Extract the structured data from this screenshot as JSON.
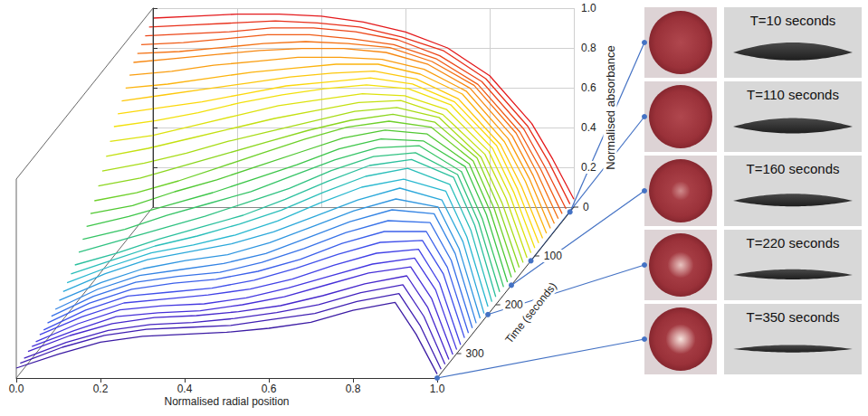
{
  "chart_data": {
    "type": "line",
    "xlabel": "Normalised radial position",
    "ylabel": "Normalised absorbance",
    "zlabel": "Time (seconds)",
    "x": [
      0,
      0.1,
      0.2,
      0.3,
      0.4,
      0.5,
      0.6,
      0.7,
      0.8,
      0.9,
      0.95,
      1
    ],
    "xlim": [
      0,
      1
    ],
    "xticks": [
      {
        "value": 0,
        "label": "0.0"
      },
      0.2,
      0.4,
      0.6,
      0.8,
      {
        "value": 1,
        "label": "1.0"
      }
    ],
    "ylim": [
      0,
      1
    ],
    "yticks": [
      0.2,
      0.4,
      0.6,
      0.8,
      {
        "value": 1,
        "label": "1.0"
      }
    ],
    "zlim": [
      0,
      350
    ],
    "zticks": [
      0,
      100,
      200,
      300
    ],
    "grid": true,
    "series": [
      {
        "time": 0,
        "color": "#e41a1c",
        "values": [
          0.95,
          0.96,
          0.97,
          0.97,
          0.96,
          0.93,
          0.88,
          0.8,
          0.66,
          0.42,
          0.24,
          0.04
        ]
      },
      {
        "time": 10,
        "color": "#e8301a",
        "values": [
          0.93,
          0.94,
          0.95,
          0.96,
          0.95,
          0.93,
          0.88,
          0.81,
          0.67,
          0.43,
          0.25,
          0.04
        ]
      },
      {
        "time": 20,
        "color": "#ec4618",
        "values": [
          0.91,
          0.92,
          0.93,
          0.95,
          0.95,
          0.93,
          0.89,
          0.81,
          0.68,
          0.44,
          0.25,
          0.04
        ]
      },
      {
        "time": 30,
        "color": "#f05c16",
        "values": [
          0.89,
          0.9,
          0.92,
          0.94,
          0.94,
          0.92,
          0.89,
          0.82,
          0.69,
          0.45,
          0.26,
          0.04
        ]
      },
      {
        "time": 40,
        "color": "#f47214",
        "values": [
          0.87,
          0.88,
          0.9,
          0.92,
          0.93,
          0.92,
          0.9,
          0.83,
          0.71,
          0.47,
          0.27,
          0.04
        ]
      },
      {
        "time": 50,
        "color": "#f78812",
        "values": [
          0.85,
          0.87,
          0.89,
          0.91,
          0.92,
          0.92,
          0.9,
          0.84,
          0.72,
          0.48,
          0.28,
          0.04
        ]
      },
      {
        "time": 60,
        "color": "#fa9e10",
        "values": [
          0.81,
          0.83,
          0.86,
          0.88,
          0.9,
          0.9,
          0.89,
          0.84,
          0.73,
          0.49,
          0.29,
          0.04
        ]
      },
      {
        "time": 70,
        "color": "#fcb40e",
        "values": [
          0.77,
          0.79,
          0.82,
          0.85,
          0.87,
          0.89,
          0.89,
          0.84,
          0.74,
          0.5,
          0.3,
          0.04
        ]
      },
      {
        "time": 80,
        "color": "#fdc80c",
        "values": [
          0.73,
          0.76,
          0.79,
          0.82,
          0.85,
          0.87,
          0.88,
          0.84,
          0.74,
          0.51,
          0.3,
          0.04
        ]
      },
      {
        "time": 90,
        "color": "#fcd80b",
        "values": [
          0.69,
          0.72,
          0.75,
          0.79,
          0.83,
          0.85,
          0.87,
          0.84,
          0.75,
          0.53,
          0.31,
          0.04
        ]
      },
      {
        "time": 100,
        "color": "#f2e00c",
        "values": [
          0.65,
          0.68,
          0.72,
          0.77,
          0.81,
          0.84,
          0.86,
          0.84,
          0.76,
          0.54,
          0.32,
          0.04
        ]
      },
      {
        "time": 110,
        "color": "#dde20e",
        "values": [
          0.6,
          0.63,
          0.68,
          0.73,
          0.78,
          0.81,
          0.84,
          0.83,
          0.76,
          0.55,
          0.33,
          0.04
        ]
      },
      {
        "time": 120,
        "color": "#c4e012",
        "values": [
          0.55,
          0.59,
          0.64,
          0.69,
          0.74,
          0.78,
          0.82,
          0.83,
          0.76,
          0.56,
          0.34,
          0.04
        ]
      },
      {
        "time": 130,
        "color": "#a8dc18",
        "values": [
          0.5,
          0.54,
          0.59,
          0.65,
          0.7,
          0.75,
          0.8,
          0.82,
          0.77,
          0.57,
          0.34,
          0.04
        ]
      },
      {
        "time": 140,
        "color": "#8cd620",
        "values": [
          0.45,
          0.49,
          0.55,
          0.61,
          0.67,
          0.73,
          0.78,
          0.81,
          0.77,
          0.59,
          0.35,
          0.04
        ]
      },
      {
        "time": 150,
        "color": "#6ed02a",
        "values": [
          0.4,
          0.44,
          0.5,
          0.57,
          0.64,
          0.71,
          0.77,
          0.8,
          0.77,
          0.6,
          0.36,
          0.04
        ]
      },
      {
        "time": 160,
        "color": "#50c832",
        "values": [
          0.36,
          0.4,
          0.47,
          0.53,
          0.6,
          0.67,
          0.74,
          0.78,
          0.76,
          0.61,
          0.37,
          0.04
        ]
      },
      {
        "time": 170,
        "color": "#3ec64a",
        "values": [
          0.32,
          0.37,
          0.43,
          0.49,
          0.56,
          0.63,
          0.71,
          0.76,
          0.75,
          0.62,
          0.38,
          0.04
        ]
      },
      {
        "time": 180,
        "color": "#36c466",
        "values": [
          0.28,
          0.33,
          0.4,
          0.46,
          0.52,
          0.6,
          0.68,
          0.74,
          0.75,
          0.62,
          0.38,
          0.04
        ]
      },
      {
        "time": 190,
        "color": "#30c282",
        "values": [
          0.24,
          0.3,
          0.36,
          0.42,
          0.49,
          0.56,
          0.65,
          0.72,
          0.74,
          0.63,
          0.39,
          0.04
        ]
      },
      {
        "time": 200,
        "color": "#2cc09e",
        "values": [
          0.2,
          0.26,
          0.33,
          0.39,
          0.45,
          0.53,
          0.62,
          0.7,
          0.73,
          0.64,
          0.4,
          0.04
        ]
      },
      {
        "time": 210,
        "color": "#2abeba",
        "values": [
          0.18,
          0.25,
          0.32,
          0.37,
          0.43,
          0.5,
          0.59,
          0.67,
          0.71,
          0.63,
          0.4,
          0.04
        ]
      },
      {
        "time": 220,
        "color": "#2ab8d0",
        "values": [
          0.16,
          0.24,
          0.31,
          0.35,
          0.4,
          0.47,
          0.56,
          0.64,
          0.68,
          0.62,
          0.39,
          0.04
        ]
      },
      {
        "time": 230,
        "color": "#2ca8da",
        "values": [
          0.14,
          0.23,
          0.3,
          0.34,
          0.38,
          0.44,
          0.52,
          0.6,
          0.66,
          0.6,
          0.39,
          0.03
        ]
      },
      {
        "time": 240,
        "color": "#3096e0",
        "values": [
          0.12,
          0.21,
          0.28,
          0.32,
          0.35,
          0.41,
          0.49,
          0.57,
          0.63,
          0.59,
          0.38,
          0.03
        ]
      },
      {
        "time": 250,
        "color": "#3484e4",
        "values": [
          0.1,
          0.2,
          0.27,
          0.3,
          0.33,
          0.38,
          0.46,
          0.54,
          0.6,
          0.58,
          0.38,
          0.03
        ]
      },
      {
        "time": 260,
        "color": "#3872e8",
        "values": [
          0.09,
          0.19,
          0.26,
          0.29,
          0.31,
          0.36,
          0.43,
          0.51,
          0.57,
          0.56,
          0.37,
          0.03
        ]
      },
      {
        "time": 270,
        "color": "#3c60ea",
        "values": [
          0.08,
          0.18,
          0.25,
          0.28,
          0.3,
          0.34,
          0.4,
          0.48,
          0.54,
          0.54,
          0.36,
          0.03
        ]
      },
      {
        "time": 280,
        "color": "#4050ea",
        "values": [
          0.07,
          0.17,
          0.24,
          0.26,
          0.28,
          0.32,
          0.38,
          0.45,
          0.51,
          0.52,
          0.35,
          0.03
        ]
      },
      {
        "time": 290,
        "color": "#4242e6",
        "values": [
          0.07,
          0.16,
          0.23,
          0.25,
          0.27,
          0.3,
          0.35,
          0.42,
          0.48,
          0.5,
          0.33,
          0.02
        ]
      },
      {
        "time": 300,
        "color": "#4438e0",
        "values": [
          0.06,
          0.15,
          0.22,
          0.24,
          0.25,
          0.28,
          0.33,
          0.39,
          0.45,
          0.48,
          0.32,
          0.02
        ]
      },
      {
        "time": 310,
        "color": "#4630d8",
        "values": [
          0.06,
          0.14,
          0.21,
          0.23,
          0.24,
          0.27,
          0.31,
          0.37,
          0.43,
          0.46,
          0.3,
          0.02
        ]
      },
      {
        "time": 320,
        "color": "#4628cc",
        "values": [
          0.06,
          0.14,
          0.2,
          0.23,
          0.24,
          0.26,
          0.29,
          0.34,
          0.4,
          0.44,
          0.28,
          0.02
        ]
      },
      {
        "time": 330,
        "color": "#4424c0",
        "values": [
          0.05,
          0.13,
          0.19,
          0.22,
          0.23,
          0.25,
          0.28,
          0.32,
          0.38,
          0.42,
          0.26,
          0.02
        ]
      },
      {
        "time": 340,
        "color": "#4020b2",
        "values": [
          0.05,
          0.13,
          0.19,
          0.22,
          0.23,
          0.24,
          0.27,
          0.3,
          0.36,
          0.4,
          0.24,
          0.02
        ]
      },
      {
        "time": 350,
        "color": "#3c1ca4",
        "values": [
          0.05,
          0.12,
          0.18,
          0.21,
          0.22,
          0.23,
          0.25,
          0.28,
          0.34,
          0.38,
          0.22,
          0.02
        ]
      }
    ],
    "images": [
      {
        "label": "T=10 seconds",
        "time": 10
      },
      {
        "label": "T=110 seconds",
        "time": 110
      },
      {
        "label": "T=160 seconds",
        "time": 160
      },
      {
        "label": "T=220 seconds",
        "time": 220
      },
      {
        "label": "T=350 seconds",
        "time": 350
      }
    ]
  }
}
